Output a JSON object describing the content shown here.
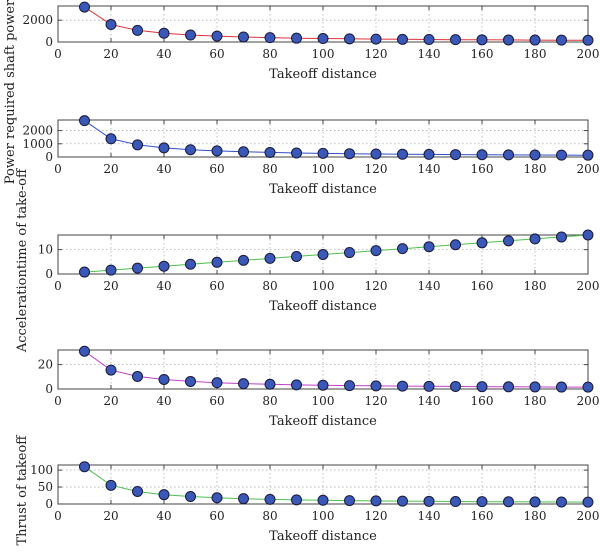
{
  "colors": {
    "marker": "#3a58b8",
    "red": "#e0323a",
    "blue": "#3050c8",
    "green": "#4ec04e",
    "magenta": "#c040c8"
  },
  "chart_data": [
    {
      "type": "line",
      "xlabel": "Takeoff distance",
      "ylabel": "",
      "xlim": [
        0,
        200
      ],
      "ylim": [
        0,
        3300
      ],
      "xticks": [
        0,
        20,
        40,
        60,
        80,
        100,
        120,
        140,
        160,
        180,
        200
      ],
      "yticks": [
        0,
        2000
      ],
      "grid": true,
      "series": [
        {
          "color": "#e0323a",
          "x": [
            10,
            20,
            30,
            40,
            50,
            60,
            70,
            80,
            90,
            100,
            110,
            120,
            130,
            140,
            150,
            160,
            170,
            180,
            190,
            200
          ],
          "y": [
            3200,
            1600,
            1070,
            800,
            640,
            540,
            460,
            400,
            350,
            320,
            290,
            265,
            245,
            230,
            215,
            200,
            188,
            178,
            168,
            160
          ]
        }
      ]
    },
    {
      "type": "line",
      "xlabel": "Takeoff distance",
      "ylabel": "",
      "xlim": [
        0,
        200
      ],
      "ylim": [
        0,
        2800
      ],
      "xticks": [
        0,
        20,
        40,
        60,
        80,
        100,
        120,
        140,
        160,
        180,
        200
      ],
      "yticks": [
        0,
        1000,
        2000
      ],
      "grid": true,
      "series": [
        {
          "color": "#3050c8",
          "x": [
            10,
            20,
            30,
            40,
            50,
            60,
            70,
            80,
            90,
            100,
            110,
            120,
            130,
            140,
            150,
            160,
            170,
            180,
            190,
            200
          ],
          "y": [
            2750,
            1380,
            920,
            690,
            550,
            460,
            395,
            345,
            305,
            275,
            250,
            230,
            212,
            197,
            184,
            172,
            162,
            153,
            145,
            138
          ]
        }
      ]
    },
    {
      "type": "line",
      "xlabel": "Takeoff distance",
      "ylabel": "Accelerationtime of take-off",
      "xlim": [
        0,
        200
      ],
      "ylim": [
        0,
        16
      ],
      "xticks": [
        0,
        20,
        40,
        60,
        80,
        100,
        120,
        140,
        160,
        180,
        200
      ],
      "yticks": [
        0,
        10
      ],
      "grid": true,
      "series": [
        {
          "color": "#4ec04e",
          "x": [
            10,
            20,
            30,
            40,
            50,
            60,
            70,
            80,
            90,
            100,
            110,
            120,
            130,
            140,
            150,
            160,
            170,
            180,
            190,
            200
          ],
          "y": [
            0.8,
            1.6,
            2.4,
            3.2,
            4.0,
            4.8,
            5.6,
            6.4,
            7.2,
            8.0,
            8.8,
            9.6,
            10.4,
            11.2,
            12.0,
            12.8,
            13.6,
            14.4,
            15.2,
            16.0
          ]
        }
      ]
    },
    {
      "type": "line",
      "xlabel": "Takeoff distance",
      "ylabel": "",
      "xlim": [
        0,
        200
      ],
      "ylim": [
        0,
        32
      ],
      "xticks": [
        0,
        20,
        40,
        60,
        80,
        100,
        120,
        140,
        160,
        180,
        200
      ],
      "yticks": [
        0,
        20
      ],
      "grid": true,
      "series": [
        {
          "color": "#c040c8",
          "x": [
            10,
            20,
            30,
            40,
            50,
            60,
            70,
            80,
            90,
            100,
            110,
            120,
            130,
            140,
            150,
            160,
            170,
            180,
            190,
            200
          ],
          "y": [
            31,
            15.5,
            10.3,
            7.8,
            6.2,
            5.2,
            4.4,
            3.9,
            3.4,
            3.1,
            2.8,
            2.6,
            2.4,
            2.2,
            2.1,
            1.9,
            1.8,
            1.7,
            1.6,
            1.55
          ]
        }
      ]
    },
    {
      "type": "line",
      "xlabel": "Takeoff distance",
      "ylabel": "Thrust of takeoff",
      "xlim": [
        0,
        200
      ],
      "ylim": [
        0,
        115
      ],
      "xticks": [
        0,
        20,
        40,
        60,
        80,
        100,
        120,
        140,
        160,
        180,
        200
      ],
      "yticks": [
        0,
        50,
        100
      ],
      "grid": true,
      "series": [
        {
          "color": "#4ec04e",
          "x": [
            10,
            20,
            30,
            40,
            50,
            60,
            70,
            80,
            90,
            100,
            110,
            120,
            130,
            140,
            150,
            160,
            170,
            180,
            190,
            200
          ],
          "y": [
            110,
            55,
            37,
            27.5,
            22,
            18.3,
            15.7,
            13.7,
            12.2,
            11,
            10,
            9.2,
            8.5,
            7.9,
            7.3,
            6.9,
            6.5,
            6.1,
            5.8,
            5.5
          ]
        }
      ]
    }
  ],
  "shared_ylabel": "Power required shaft power"
}
